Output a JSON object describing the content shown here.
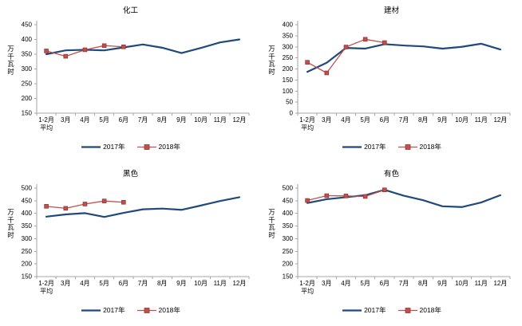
{
  "page": {
    "background": "#FFFFFF"
  },
  "colors": {
    "series_2017": "#1F497D",
    "series_2018": "#C0504D",
    "marker_border": "#943634",
    "axis": "#A6A6A6",
    "text": "#000000"
  },
  "chart_data": [
    {
      "type": "line",
      "title": "化工",
      "ylabel": "万千瓦时",
      "ylim": [
        150,
        450
      ],
      "ytick_step": 50,
      "grid": false,
      "legend_position": "bottom",
      "categories": [
        "1-2月\n平均",
        "3月",
        "4月",
        "5月",
        "6月",
        "7月",
        "8月",
        "9月",
        "10月",
        "11月",
        "12月"
      ],
      "series": [
        {
          "name": "2017年",
          "color": "#1F497D",
          "marker": false,
          "values": [
            350,
            363,
            365,
            363,
            373,
            383,
            372,
            354,
            371,
            390,
            400
          ]
        },
        {
          "name": "2018年",
          "color": "#C0504D",
          "marker": "square",
          "marker_border": "#943634",
          "values": [
            361,
            343,
            365,
            379,
            375
          ]
        }
      ]
    },
    {
      "type": "line",
      "title": "建材",
      "ylabel": "万千瓦时",
      "ylim": [
        0,
        400
      ],
      "ytick_step": 50,
      "grid": false,
      "legend_position": "bottom",
      "categories": [
        "1-2月\n平均",
        "3月",
        "4月",
        "5月",
        "6月",
        "7月",
        "8月",
        "9月",
        "10月",
        "11月",
        "12月"
      ],
      "series": [
        {
          "name": "2017年",
          "color": "#1F497D",
          "marker": false,
          "values": [
            187,
            228,
            295,
            292,
            312,
            306,
            302,
            292,
            300,
            314,
            288
          ]
        },
        {
          "name": "2018年",
          "color": "#C0504D",
          "marker": "square",
          "marker_border": "#943634",
          "values": [
            230,
            182,
            299,
            334,
            319
          ]
        }
      ]
    },
    {
      "type": "line",
      "title": "黑色",
      "ylabel": "万千瓦时",
      "ylim": [
        150,
        500
      ],
      "ytick_step": 50,
      "grid": false,
      "legend_position": "bottom",
      "categories": [
        "1-2月\n平均",
        "3月",
        "4月",
        "5月",
        "6月",
        "7月",
        "8月",
        "9月",
        "10月",
        "11月",
        "12月"
      ],
      "series": [
        {
          "name": "2017年",
          "color": "#1F497D",
          "marker": false,
          "values": [
            387,
            396,
            401,
            386,
            402,
            416,
            419,
            414,
            431,
            449,
            464
          ]
        },
        {
          "name": "2018年",
          "color": "#C0504D",
          "marker": "square",
          "marker_border": "#943634",
          "values": [
            428,
            420,
            437,
            449,
            444
          ]
        }
      ]
    },
    {
      "type": "line",
      "title": "有色",
      "ylabel": "万千瓦时",
      "ylim": [
        150,
        500
      ],
      "ytick_step": 50,
      "grid": false,
      "legend_position": "bottom",
      "categories": [
        "1-2月\n平均",
        "3月",
        "4月",
        "5月",
        "6月",
        "7月",
        "8月",
        "9月",
        "10月",
        "11月",
        "12月"
      ],
      "series": [
        {
          "name": "2017年",
          "color": "#1F497D",
          "marker": false,
          "values": [
            441,
            456,
            464,
            472,
            493,
            470,
            452,
            428,
            425,
            443,
            472
          ]
        },
        {
          "name": "2018年",
          "color": "#C0504D",
          "marker": "square",
          "marker_border": "#943634",
          "values": [
            451,
            470,
            469,
            467,
            493
          ]
        }
      ]
    }
  ]
}
